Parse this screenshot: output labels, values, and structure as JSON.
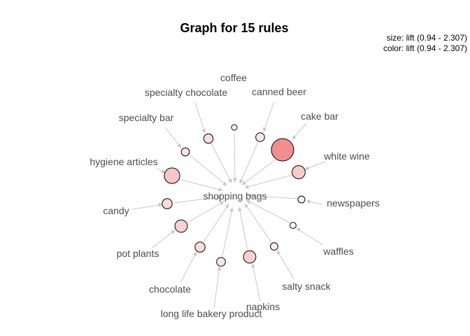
{
  "title": "Graph for 15 rules",
  "legend": {
    "size": "size: lift (0.94 - 2.307)",
    "color": "color: lift (0.94 - 2.307)"
  },
  "center": {
    "name": "shopping bags"
  },
  "rules": [
    {
      "item": "coffee",
      "lift": 0.94,
      "color": "#ffffff"
    },
    {
      "item": "canned beer",
      "lift": 1.2,
      "color": "#fde4e4"
    },
    {
      "item": "cake bar",
      "lift": 2.307,
      "color": "#f28e8e"
    },
    {
      "item": "white wine",
      "lift": 1.55,
      "color": "#f9cccc"
    },
    {
      "item": "newspapers",
      "lift": 1.05,
      "color": "#fef4f4"
    },
    {
      "item": "waffles",
      "lift": 0.98,
      "color": "#fefafa"
    },
    {
      "item": "salty snack",
      "lift": 1.1,
      "color": "#fdecec"
    },
    {
      "item": "napkins",
      "lift": 1.5,
      "color": "#f9cfcf"
    },
    {
      "item": "long life bakery product",
      "lift": 1.2,
      "color": "#fde3e3"
    },
    {
      "item": "chocolate",
      "lift": 1.3,
      "color": "#fbdcdc"
    },
    {
      "item": "pot plants",
      "lift": 1.5,
      "color": "#f9d1d1"
    },
    {
      "item": "candy",
      "lift": 1.3,
      "color": "#fbdada"
    },
    {
      "item": "hygiene articles",
      "lift": 1.75,
      "color": "#f8c6c6"
    },
    {
      "item": "specialty bar",
      "lift": 1.15,
      "color": "#fde6e6"
    },
    {
      "item": "specialty chocolate",
      "lift": 1.25,
      "color": "#fcdede"
    }
  ]
}
